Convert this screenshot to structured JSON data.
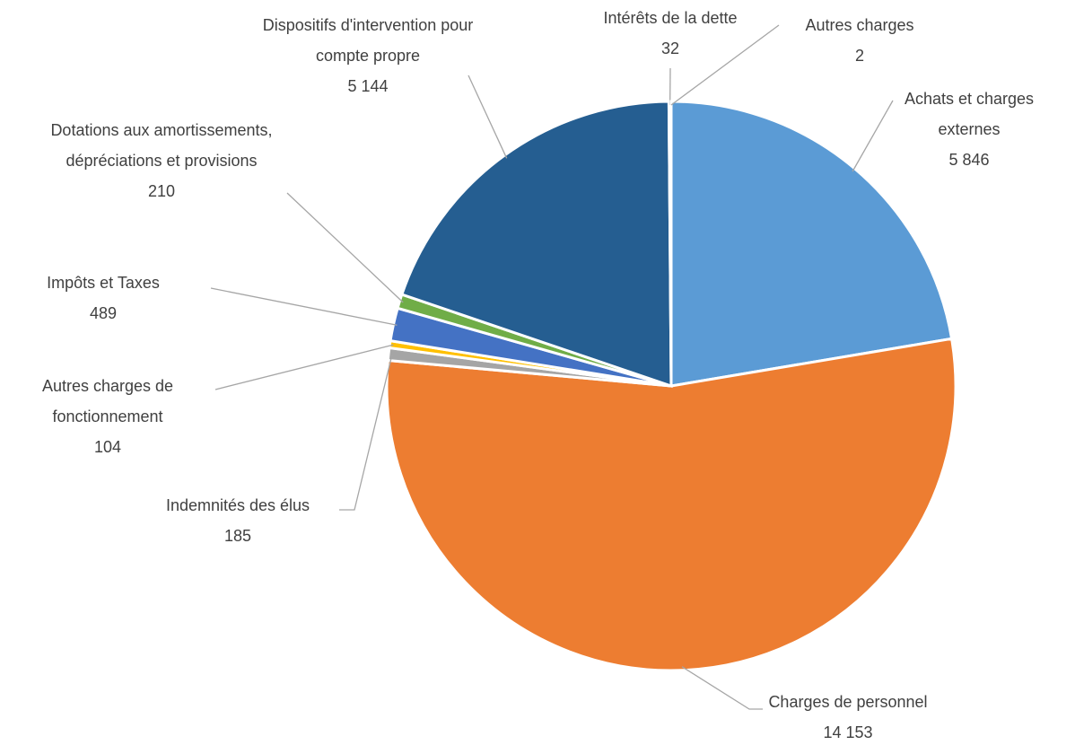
{
  "chart_data": {
    "type": "pie",
    "categories": [
      "Achats et charges externes",
      "Charges de personnel",
      "Indemnités des élus",
      "Autres charges de fonctionnement",
      "Impôts et Taxes",
      "Dotations aux amortissements, dépréciations et provisions",
      "Dispositifs d'intervention pour compte propre",
      "Intérêts de la dette",
      "Autres charges"
    ],
    "values": [
      5846,
      14153,
      185,
      104,
      489,
      210,
      5144,
      32,
      2
    ],
    "value_labels": [
      "5 846",
      "14 153",
      "185",
      "104",
      "489",
      "210",
      "5 144",
      "32",
      "2"
    ],
    "colors": [
      "#5b9bd5",
      "#ed7d31",
      "#a5a5a5",
      "#ffc000",
      "#4472c4",
      "#70ad47",
      "#255e91",
      "#9e480e",
      "#636363"
    ]
  }
}
